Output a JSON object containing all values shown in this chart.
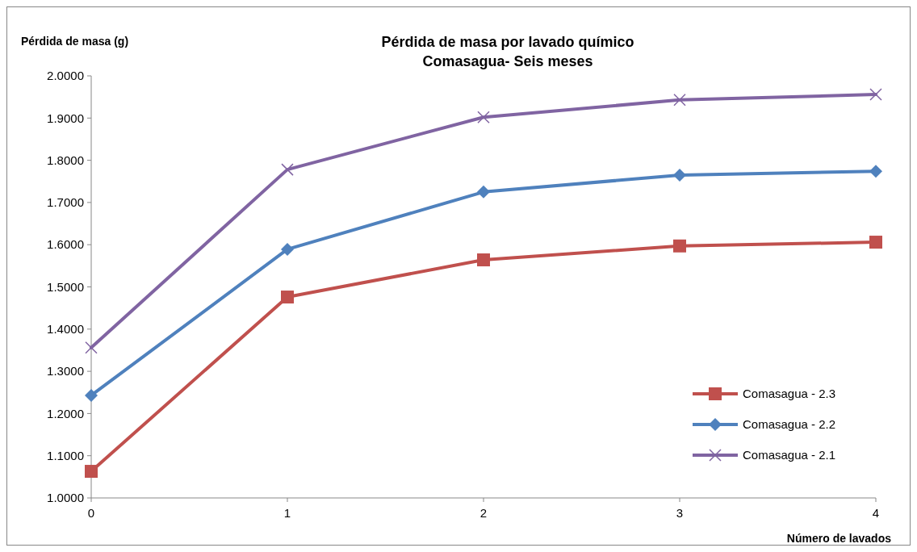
{
  "chart_data": {
    "type": "line",
    "title": "Pérdida de masa por lavado químico",
    "subtitle": "Comasagua- Seis meses",
    "xlabel": "Número de lavados",
    "ylabel": "Pérdida de masa (g)",
    "x": [
      0,
      1,
      2,
      3,
      4
    ],
    "xlim": [
      0,
      4
    ],
    "xticks": [
      0,
      1,
      2,
      3,
      4
    ],
    "ylim": [
      1,
      2
    ],
    "yticks": [
      {
        "value": 1,
        "label": "1.0000"
      },
      {
        "value": 1.1,
        "label": "1.1000"
      },
      {
        "value": 1.2,
        "label": "1.2000"
      },
      {
        "value": 1.3,
        "label": "1.3000"
      },
      {
        "value": 1.4,
        "label": "1.4000"
      },
      {
        "value": 1.5,
        "label": "1.5000"
      },
      {
        "value": 1.6,
        "label": "1.6000"
      },
      {
        "value": 1.7,
        "label": "1.7000"
      },
      {
        "value": 1.8,
        "label": "1.8000"
      },
      {
        "value": 1.9,
        "label": "1.9000"
      },
      {
        "value": 2,
        "label": "2.0000"
      }
    ],
    "grid": false,
    "legend": "bottom right",
    "series": [
      {
        "name": "Comasagua - 2.3",
        "color": "#c0504d",
        "marker": "square",
        "values": [
          1.063,
          1.476,
          1.564,
          1.597,
          1.606
        ]
      },
      {
        "name": "Comasagua - 2.2",
        "color": "#4f81bd",
        "marker": "diamond",
        "values": [
          1.243,
          1.589,
          1.725,
          1.765,
          1.774
        ]
      },
      {
        "name": "Comasagua - 2.1",
        "color": "#8064a2",
        "marker": "cross",
        "values": [
          1.356,
          1.778,
          1.902,
          1.943,
          1.956
        ]
      }
    ]
  }
}
